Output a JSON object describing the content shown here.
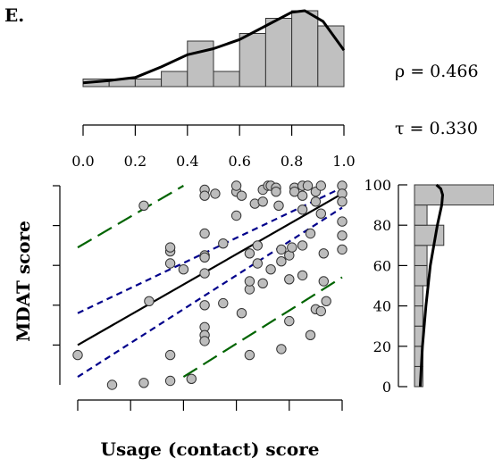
{
  "panel_label": "E.",
  "stats": {
    "rho": "ρ = 0.466",
    "tau": "τ = 0.330"
  },
  "chart_data": {
    "type": "scatter",
    "xlabel": "Usage (contact) score",
    "ylabel": "MDAT score",
    "xlim": [
      0,
      1
    ],
    "ylim": [
      0,
      100
    ],
    "x_ticks": [
      0.0,
      0.2,
      0.4,
      0.6,
      0.8,
      1.0
    ],
    "x_tick_labels": [
      "0.0",
      "0.2",
      "0.4",
      "0.6",
      "0.8",
      "1.0"
    ],
    "y_ticks": [
      0,
      20,
      40,
      60,
      80,
      100
    ],
    "y_tick_labels": [
      "0",
      "20",
      "40",
      "60",
      "80",
      "100"
    ],
    "points": [
      [
        0.0,
        15
      ],
      [
        0.13,
        0
      ],
      [
        0.25,
        1
      ],
      [
        0.35,
        2
      ],
      [
        0.35,
        15
      ],
      [
        0.27,
        42
      ],
      [
        0.35,
        61
      ],
      [
        0.35,
        67
      ],
      [
        0.4,
        58
      ],
      [
        0.25,
        90
      ],
      [
        0.48,
        98
      ],
      [
        0.48,
        95
      ],
      [
        0.48,
        76
      ],
      [
        0.48,
        65
      ],
      [
        0.48,
        64
      ],
      [
        0.48,
        56
      ],
      [
        0.48,
        40
      ],
      [
        0.48,
        29
      ],
      [
        0.48,
        25
      ],
      [
        0.48,
        22
      ],
      [
        0.52,
        96
      ],
      [
        0.55,
        41
      ],
      [
        0.6,
        97
      ],
      [
        0.6,
        85
      ],
      [
        0.62,
        95
      ],
      [
        0.62,
        36
      ],
      [
        0.6,
        100
      ],
      [
        0.67,
        91
      ],
      [
        0.68,
        70
      ],
      [
        0.68,
        61
      ],
      [
        0.65,
        48
      ],
      [
        0.7,
        98
      ],
      [
        0.7,
        92
      ],
      [
        0.72,
        100
      ],
      [
        0.73,
        100
      ],
      [
        0.75,
        99
      ],
      [
        0.75,
        97
      ],
      [
        0.76,
        90
      ],
      [
        0.77,
        68
      ],
      [
        0.77,
        62
      ],
      [
        0.8,
        53
      ],
      [
        0.8,
        65
      ],
      [
        0.81,
        69
      ],
      [
        0.82,
        99
      ],
      [
        0.82,
        97
      ],
      [
        0.85,
        70
      ],
      [
        0.85,
        100
      ],
      [
        0.85,
        95
      ],
      [
        0.85,
        88
      ],
      [
        0.87,
        100
      ],
      [
        0.88,
        76
      ],
      [
        0.9,
        97
      ],
      [
        0.9,
        92
      ],
      [
        0.92,
        100
      ],
      [
        0.92,
        86
      ],
      [
        0.93,
        66
      ],
      [
        0.93,
        52
      ],
      [
        0.94,
        42
      ],
      [
        1.0,
        100
      ],
      [
        1.0,
        96
      ],
      [
        1.0,
        92
      ],
      [
        1.0,
        82
      ],
      [
        1.0,
        75
      ],
      [
        1.0,
        68
      ],
      [
        0.55,
        71
      ],
      [
        0.65,
        66
      ],
      [
        0.65,
        52
      ],
      [
        0.73,
        58
      ],
      [
        0.7,
        51
      ],
      [
        0.85,
        55
      ],
      [
        0.9,
        38
      ],
      [
        0.92,
        37
      ],
      [
        0.88,
        25
      ],
      [
        0.8,
        32
      ],
      [
        0.77,
        18
      ],
      [
        0.65,
        15
      ],
      [
        0.43,
        3
      ],
      [
        0.35,
        69
      ]
    ],
    "series": [
      {
        "role": "regression",
        "color": "#000000",
        "dash": "solid",
        "x": [
          0.0,
          1.0
        ],
        "y": [
          20,
          96
        ]
      },
      {
        "role": "ci-upper",
        "color": "#00008b",
        "dash": "short",
        "x": [
          0.0,
          1.0
        ],
        "y": [
          36,
          99
        ]
      },
      {
        "role": "ci-lower",
        "color": "#00008b",
        "dash": "short",
        "x": [
          0.0,
          1.0
        ],
        "y": [
          4,
          89
        ]
      },
      {
        "role": "pi-upper",
        "color": "#006400",
        "dash": "long",
        "x": [
          0.0,
          0.4
        ],
        "y": [
          69,
          100
        ]
      },
      {
        "role": "pi-lower",
        "color": "#006400",
        "dash": "long",
        "x": [
          0.4,
          1.0
        ],
        "y": [
          4,
          54
        ]
      }
    ],
    "x_histogram": {
      "bins": [
        0.0,
        0.1,
        0.2,
        0.3,
        0.4,
        0.5,
        0.6,
        0.7,
        0.8,
        0.9,
        1.0
      ],
      "heights": [
        1,
        1,
        1,
        2,
        6,
        2,
        7,
        9,
        10,
        8
      ],
      "density_curve": [
        [
          0.0,
          0.5
        ],
        [
          0.1,
          0.8
        ],
        [
          0.2,
          1.2
        ],
        [
          0.3,
          2.6
        ],
        [
          0.4,
          4.2
        ],
        [
          0.5,
          5.0
        ],
        [
          0.6,
          6.2
        ],
        [
          0.7,
          8.0
        ],
        [
          0.8,
          9.8
        ],
        [
          0.85,
          10.0
        ],
        [
          0.92,
          8.6
        ],
        [
          1.0,
          4.8
        ]
      ]
    },
    "y_histogram": {
      "bins": [
        0,
        10,
        20,
        30,
        40,
        50,
        60,
        70,
        80,
        90,
        100
      ],
      "counts": [
        2,
        2,
        2,
        2,
        2,
        3,
        3,
        7,
        3,
        19
      ],
      "density_curve": [
        [
          0,
          1.3
        ],
        [
          20,
          1.8
        ],
        [
          40,
          2.6
        ],
        [
          60,
          3.6
        ],
        [
          80,
          5.2
        ],
        [
          90,
          6.2
        ],
        [
          95,
          6.4
        ],
        [
          98,
          6.0
        ],
        [
          100,
          5.0
        ]
      ]
    },
    "colors": {
      "points": "#bdbdbd",
      "bars": "#c0c0c0",
      "outline": "#000000"
    }
  }
}
